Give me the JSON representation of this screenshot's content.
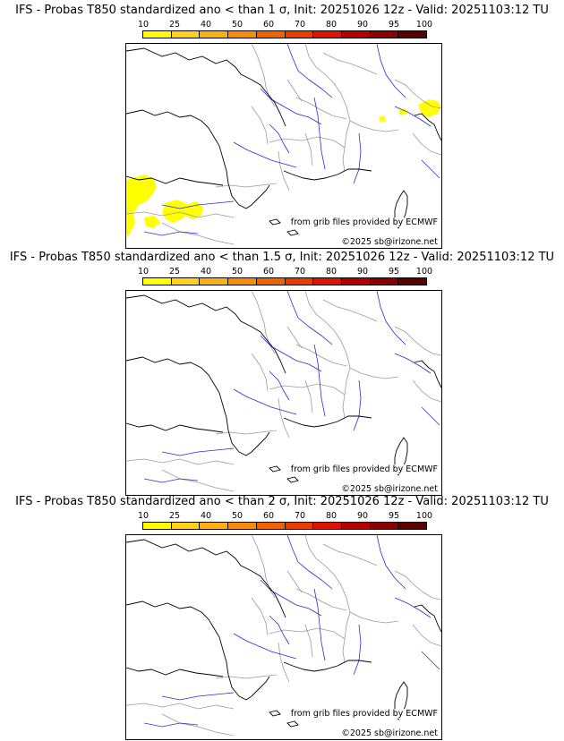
{
  "panels": [
    {
      "title": "IFS - Probas T850  standardized ano < than 1 σ, Init: 20251026 12z - Valid: 20251103:12 TU",
      "highlight": "yellow-areas-present"
    },
    {
      "title": "IFS - Probas T850  standardized ano < than 1.5 σ, Init: 20251026 12z - Valid: 20251103:12 TU",
      "highlight": "none"
    },
    {
      "title": "IFS - Probas T850  standardized ano < than 2 σ, Init: 20251026 12z - Valid: 20251103:12 TU",
      "highlight": "none"
    }
  ],
  "colorbar": {
    "ticks": [
      "10",
      "25",
      "40",
      "50",
      "60",
      "70",
      "80",
      "90",
      "95",
      "100"
    ],
    "colors": [
      "#ffff00",
      "#ffd21e",
      "#fab014",
      "#f58c0a",
      "#f06400",
      "#eb3c00",
      "#dc1400",
      "#b40000",
      "#8c0000",
      "#5a0000"
    ]
  },
  "credits": {
    "source": "from grib files provided by ECMWF",
    "copyright": "©2025 sb@irizone.net"
  },
  "legend_colors": {
    "coast": "#000000",
    "borders": "#9a9a9a",
    "rivers": "#2b2bd6",
    "prob_low": "#ffff00"
  }
}
